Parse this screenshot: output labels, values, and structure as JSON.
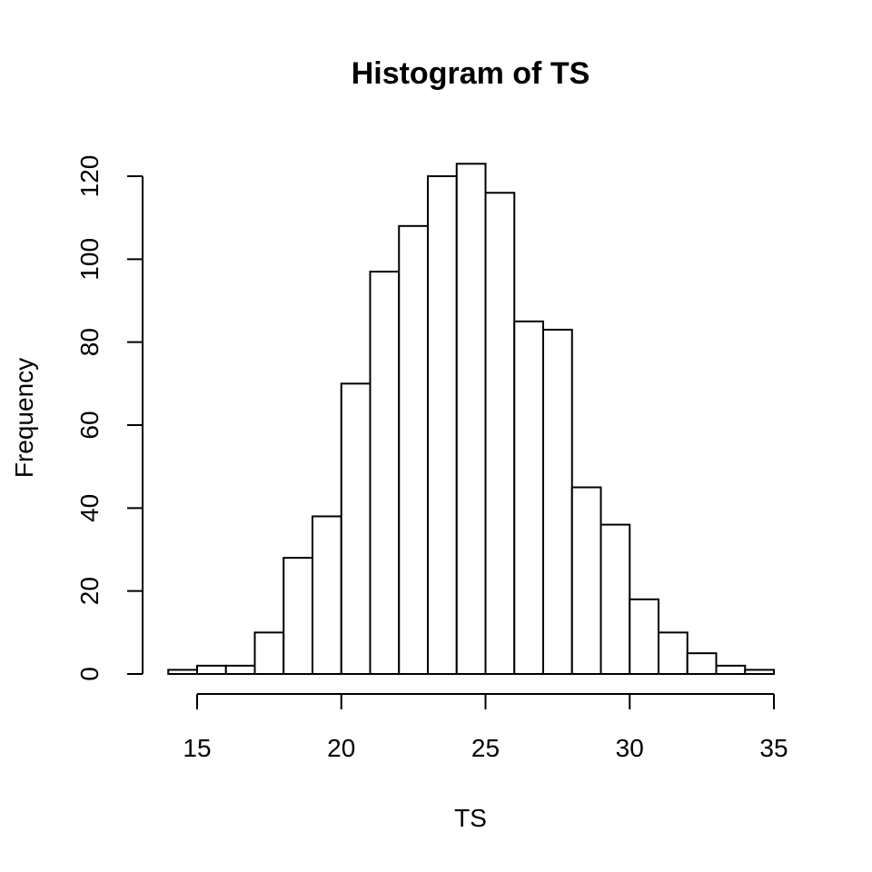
{
  "chart_data": {
    "type": "bar",
    "title": "Histogram of TS",
    "xlabel": "TS",
    "ylabel": "Frequency",
    "bin_edges": [
      14,
      15,
      16,
      17,
      18,
      19,
      20,
      21,
      22,
      23,
      24,
      25,
      26,
      27,
      28,
      29,
      30,
      31,
      32,
      33,
      34,
      35
    ],
    "values": [
      1,
      2,
      2,
      10,
      28,
      38,
      70,
      97,
      108,
      120,
      123,
      116,
      85,
      83,
      45,
      36,
      18,
      10,
      5,
      2,
      1
    ],
    "xlim": [
      15,
      35
    ],
    "ylim": [
      0,
      120
    ],
    "x_ticks": [
      15,
      20,
      25,
      30,
      35
    ],
    "y_ticks": [
      0,
      20,
      40,
      60,
      80,
      100,
      120
    ],
    "grid": false,
    "bar_fill": "#ffffff",
    "bar_stroke": "#000000"
  }
}
